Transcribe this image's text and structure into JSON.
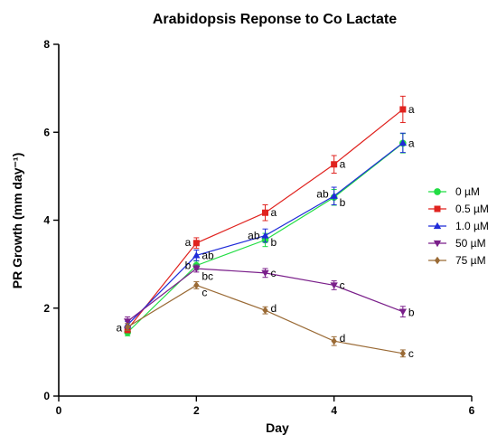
{
  "chart_data": {
    "type": "line",
    "title": "Arabidopsis Reponse to Co Lactate",
    "xlabel": "Day",
    "ylabel": "PR Growth (mm day⁻¹)",
    "xlim": [
      0,
      6
    ],
    "ylim": [
      0,
      8
    ],
    "xticks": [
      0,
      2,
      4,
      6
    ],
    "yticks": [
      0,
      2,
      4,
      6,
      8
    ],
    "grid": false,
    "legend_position": "right",
    "x": [
      1,
      2,
      3,
      4,
      5
    ],
    "series": [
      {
        "name": "0 µM",
        "color": "#22dd44",
        "marker": "circle",
        "values": [
          1.45,
          2.97,
          3.55,
          4.52,
          5.75
        ],
        "errors": [
          0.08,
          0.1,
          0.15,
          0.18,
          0.22
        ]
      },
      {
        "name": "0.5 µM",
        "color": "#e0231f",
        "marker": "square",
        "values": [
          1.52,
          3.48,
          4.17,
          5.27,
          6.52
        ],
        "errors": [
          0.08,
          0.12,
          0.18,
          0.2,
          0.3
        ]
      },
      {
        "name": "1.0 µM",
        "color": "#1f2bd8",
        "marker": "triangle-up",
        "values": [
          1.62,
          3.2,
          3.65,
          4.55,
          5.76
        ],
        "errors": [
          0.08,
          0.12,
          0.15,
          0.2,
          0.22
        ]
      },
      {
        "name": "50 µM",
        "color": "#7a1f8a",
        "marker": "triangle-down",
        "values": [
          1.7,
          2.9,
          2.8,
          2.52,
          1.92
        ],
        "errors": [
          0.1,
          0.08,
          0.1,
          0.1,
          0.12
        ]
      },
      {
        "name": "75 µM",
        "color": "#9a6a35",
        "marker": "diamond",
        "values": [
          1.57,
          2.52,
          1.95,
          1.25,
          0.97
        ],
        "errors": [
          0.08,
          0.08,
          0.08,
          0.1,
          0.08
        ]
      }
    ],
    "annotations": [
      {
        "text": "a",
        "x": 1,
        "y": 1.55,
        "side": "left"
      },
      {
        "text": "a",
        "x": 2,
        "y": 3.5,
        "side": "left"
      },
      {
        "text": "ab",
        "x": 2,
        "y": 3.2,
        "side": "right"
      },
      {
        "text": "b",
        "x": 2,
        "y": 2.97,
        "side": "left"
      },
      {
        "text": "bc",
        "x": 2,
        "y": 2.72,
        "side": "right"
      },
      {
        "text": "c",
        "x": 2,
        "y": 2.35,
        "side": "right"
      },
      {
        "text": "a",
        "x": 3,
        "y": 4.17,
        "side": "right"
      },
      {
        "text": "ab",
        "x": 3,
        "y": 3.65,
        "side": "left"
      },
      {
        "text": "b",
        "x": 3,
        "y": 3.5,
        "side": "right"
      },
      {
        "text": "c",
        "x": 3,
        "y": 2.8,
        "side": "right"
      },
      {
        "text": "d",
        "x": 3,
        "y": 2.0,
        "side": "right"
      },
      {
        "text": "a",
        "x": 4,
        "y": 5.27,
        "side": "right"
      },
      {
        "text": "ab",
        "x": 4,
        "y": 4.6,
        "side": "left"
      },
      {
        "text": "b",
        "x": 4,
        "y": 4.4,
        "side": "right"
      },
      {
        "text": "c",
        "x": 4,
        "y": 2.52,
        "side": "right"
      },
      {
        "text": "d",
        "x": 4,
        "y": 1.32,
        "side": "right"
      },
      {
        "text": "a",
        "x": 5,
        "y": 6.52,
        "side": "right"
      },
      {
        "text": "a",
        "x": 5,
        "y": 5.75,
        "side": "right"
      },
      {
        "text": "b",
        "x": 5,
        "y": 1.9,
        "side": "right"
      },
      {
        "text": "c",
        "x": 5,
        "y": 0.97,
        "side": "right"
      }
    ]
  }
}
